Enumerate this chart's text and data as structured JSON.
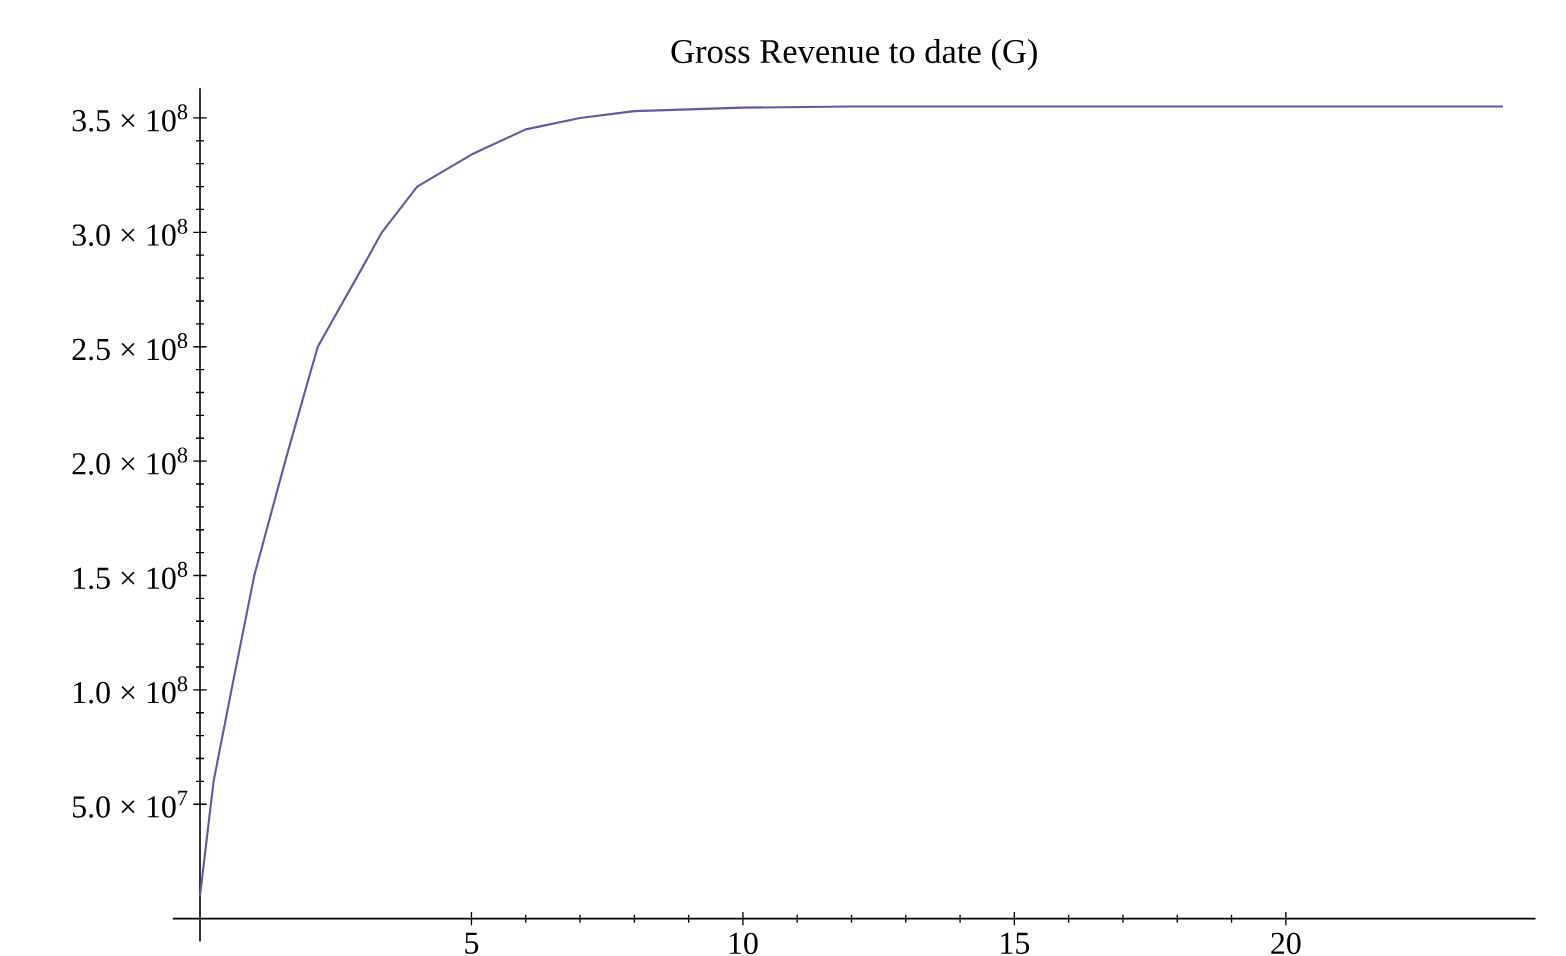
{
  "chart_data": {
    "type": "line",
    "title": "Gross Revenue to date (G)",
    "x": [
      0,
      0.25,
      0.58,
      1,
      1.57,
      2,
      2.17,
      2.5,
      3,
      3.35,
      4,
      5,
      6,
      7,
      8,
      10,
      12,
      16,
      20,
      24
    ],
    "series": [
      {
        "color": "#5c5ca0",
        "values": [
          10000000,
          60000000,
          100000000,
          150000000,
          200000000,
          236000000,
          250000000,
          264000000,
          285000000,
          300000000,
          320000000,
          334000000,
          345000000,
          350000000,
          353000000,
          354500000,
          355000000,
          355000000,
          355000000,
          355000000
        ]
      }
    ],
    "xlim": [
      -0.5,
      24.6
    ],
    "ylim": [
      -10000000,
      363000000
    ],
    "xticks": [
      5,
      10,
      15,
      20
    ],
    "yticks": [
      {
        "value": 50000000,
        "label": "5.0 × 10$^{7}$"
      },
      {
        "value": 100000000,
        "label": "1.0 × 10$^{8}$"
      },
      {
        "value": 150000000,
        "label": "1.5 × 10$^{8}$"
      },
      {
        "value": 200000000,
        "label": "2.0 × 10$^{8}$"
      },
      {
        "value": 250000000,
        "label": "2.5 × 10$^{8}$"
      },
      {
        "value": 300000000,
        "label": "3.0 × 10$^{8}$"
      },
      {
        "value": 350000000,
        "label": "3.5 × 10$^{8}$"
      }
    ],
    "marker": "none",
    "line_style": "solid"
  }
}
